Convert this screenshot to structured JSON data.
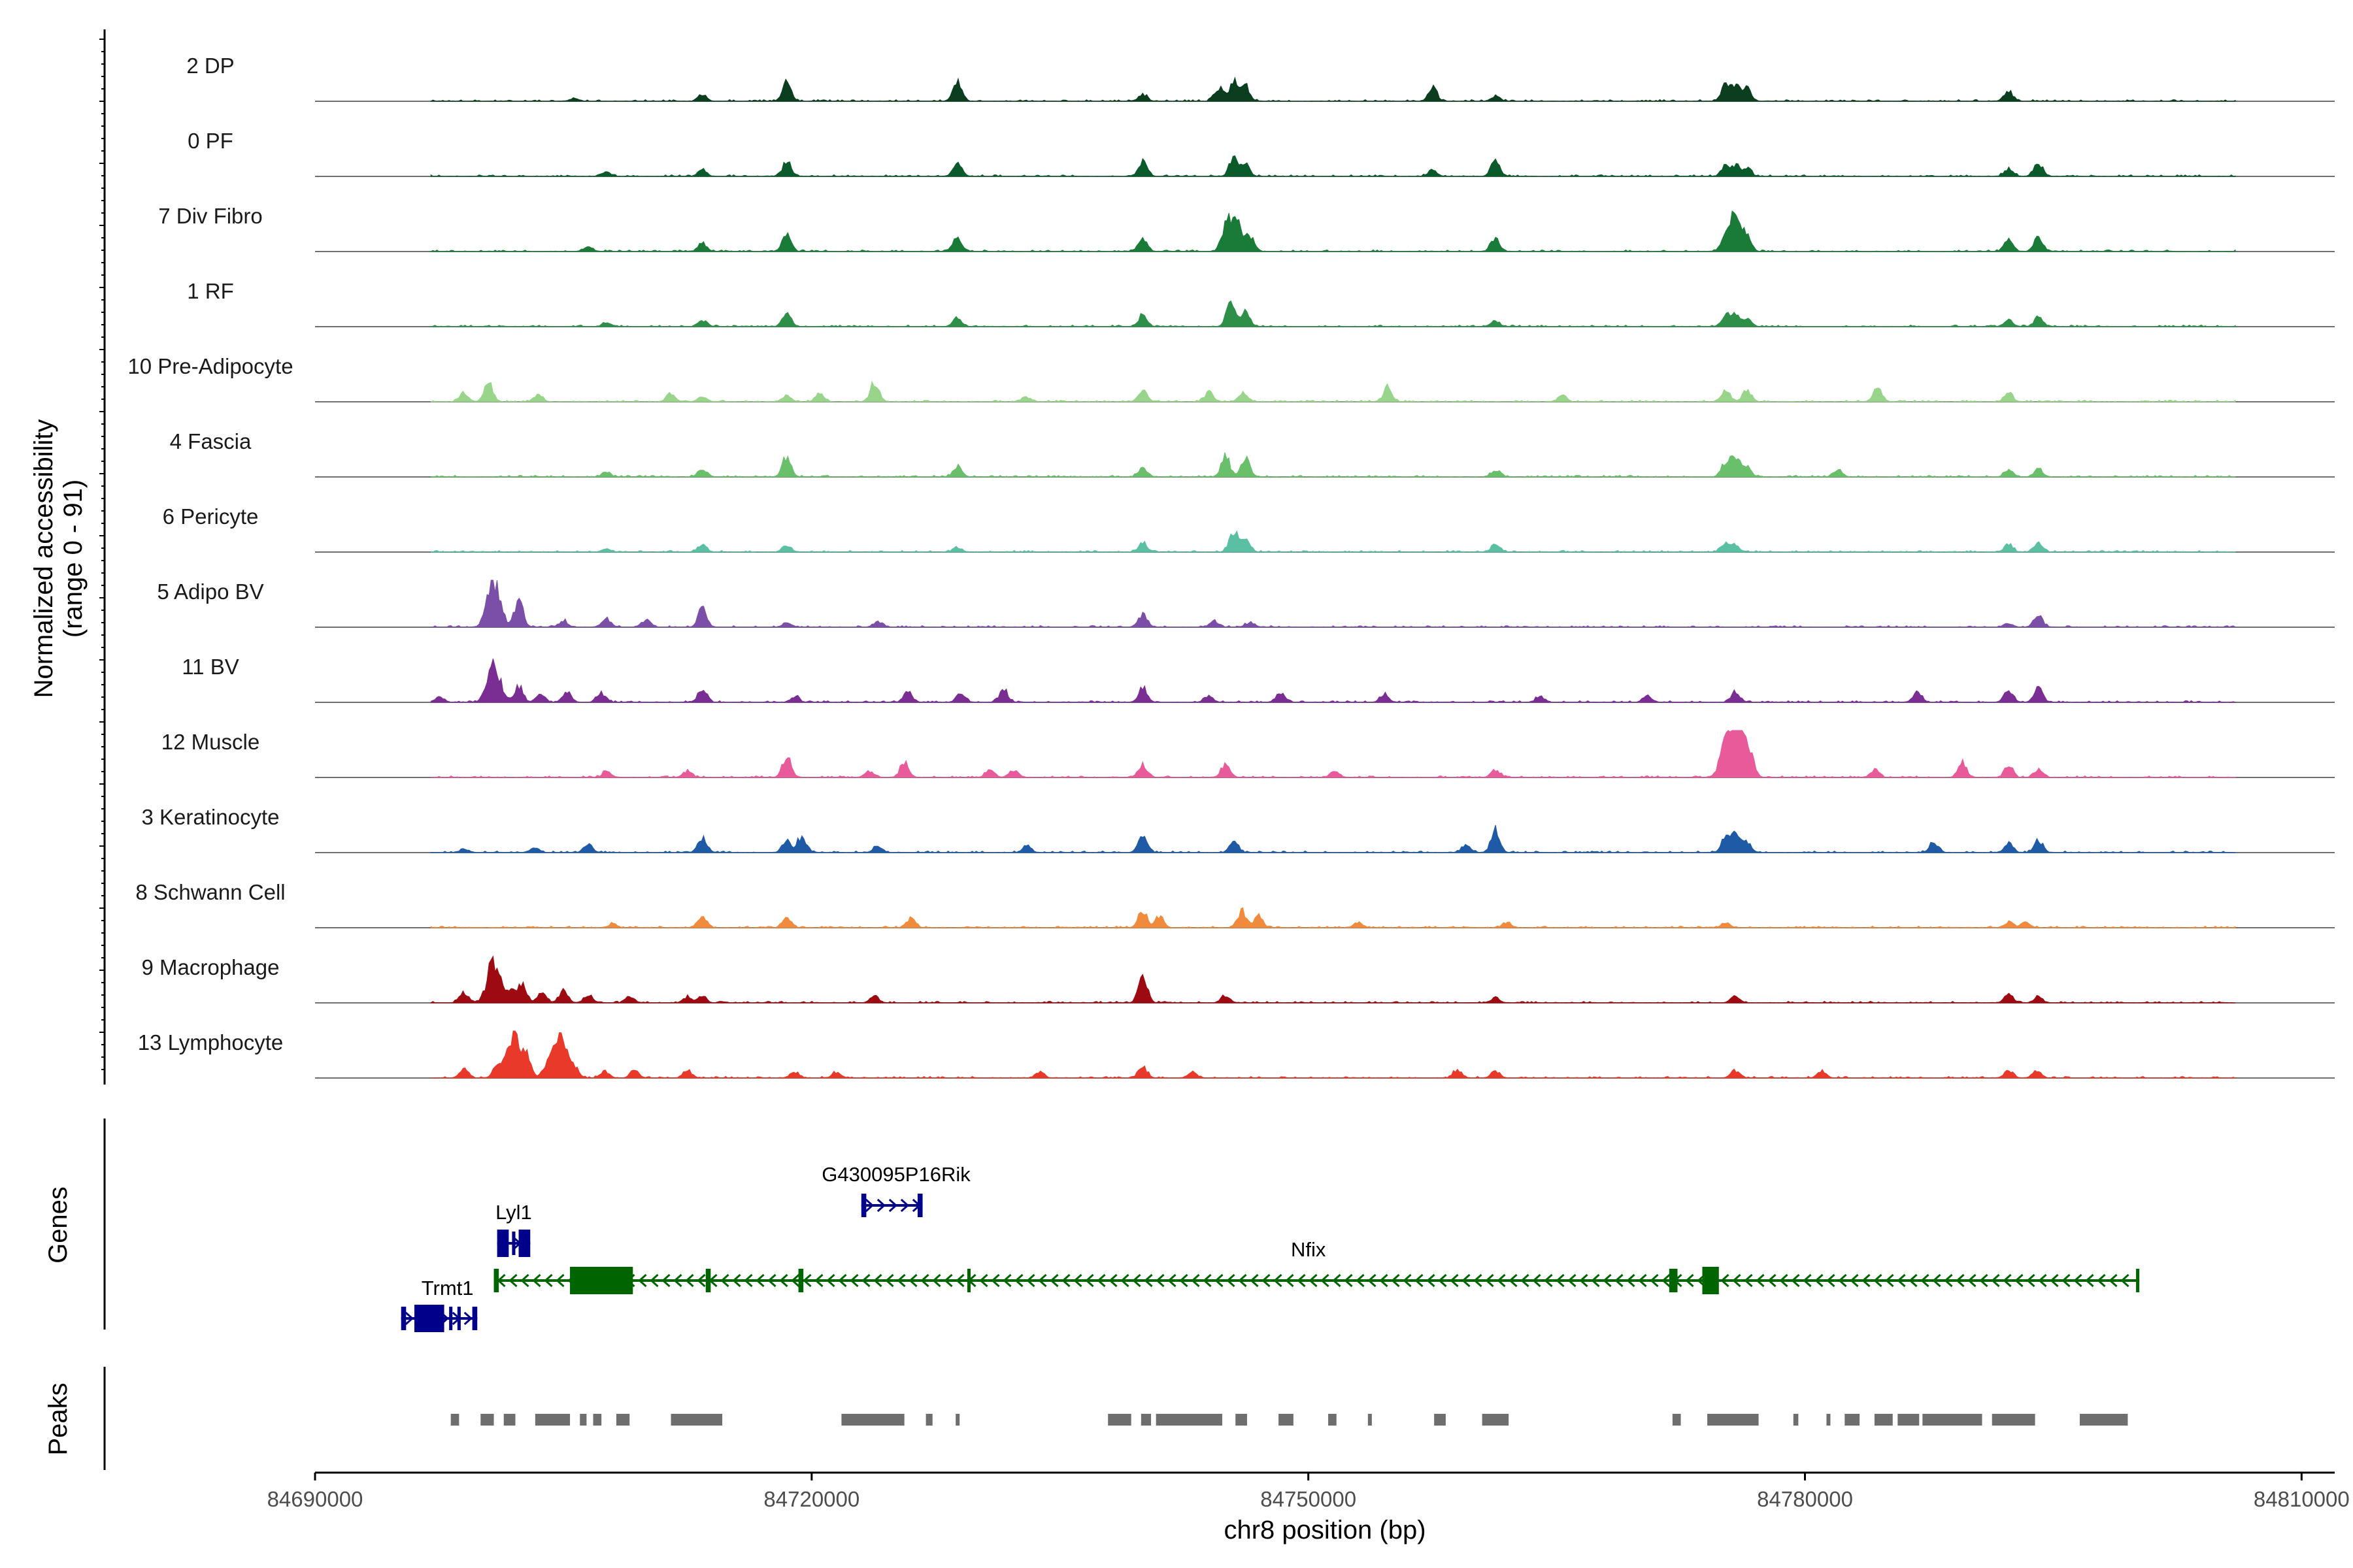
{
  "chart_data": {
    "type": "genome-browser-coverage",
    "y_axis_title_line1": "Normalized accessibility",
    "y_axis_title_line2": "(range 0 - 91)",
    "y_range": [
      0,
      91
    ],
    "x_axis_title": "chr8 position (bp)",
    "x_range": [
      84690000,
      84812000
    ],
    "x_ticks": [
      84690000,
      84720000,
      84750000,
      84780000,
      84810000
    ],
    "x_tick_labels": [
      "84690000",
      "84720000",
      "84750000",
      "84780000",
      "84810000"
    ],
    "panel_titles": {
      "genes": "Genes",
      "peaks": "Peaks"
    },
    "tracks": [
      {
        "label": "2 DP",
        "color": "#0b3d1f",
        "peaks": [
          [
            84705700,
            6
          ],
          [
            84713400,
            14
          ],
          [
            84718500,
            38
          ],
          [
            84728800,
            44
          ],
          [
            84740000,
            14
          ],
          [
            84744600,
            30
          ],
          [
            84745500,
            44
          ],
          [
            84746200,
            34
          ],
          [
            84757500,
            30
          ],
          [
            84761300,
            10
          ],
          [
            84775200,
            32
          ],
          [
            84775800,
            34
          ],
          [
            84776500,
            26
          ],
          [
            84792300,
            22
          ]
        ]
      },
      {
        "label": "0 PF",
        "color": "#0b5a2b",
        "peaks": [
          [
            84707600,
            10
          ],
          [
            84713400,
            14
          ],
          [
            84718500,
            32
          ],
          [
            84728800,
            30
          ],
          [
            84740000,
            32
          ],
          [
            84745500,
            40
          ],
          [
            84746200,
            24
          ],
          [
            84757500,
            14
          ],
          [
            84761300,
            34
          ],
          [
            84775200,
            20
          ],
          [
            84775800,
            22
          ],
          [
            84776500,
            16
          ],
          [
            84792300,
            16
          ],
          [
            84794100,
            26
          ]
        ]
      },
      {
        "label": "7 Div Fibro",
        "color": "#1a7a38",
        "peaks": [
          [
            84706500,
            10
          ],
          [
            84713400,
            18
          ],
          [
            84718500,
            38
          ],
          [
            84728800,
            34
          ],
          [
            84740000,
            26
          ],
          [
            84745000,
            40
          ],
          [
            84745600,
            68
          ],
          [
            84746500,
            28
          ],
          [
            84761300,
            30
          ],
          [
            84775200,
            26
          ],
          [
            84775800,
            72
          ],
          [
            84776500,
            22
          ],
          [
            84792300,
            24
          ],
          [
            84794100,
            30
          ]
        ]
      },
      {
        "label": "1 RF",
        "color": "#2e8f48",
        "peaks": [
          [
            84707600,
            8
          ],
          [
            84713400,
            14
          ],
          [
            84718500,
            32
          ],
          [
            84728800,
            18
          ],
          [
            84740000,
            24
          ],
          [
            84745300,
            50
          ],
          [
            84746200,
            30
          ],
          [
            84761300,
            12
          ],
          [
            84775200,
            22
          ],
          [
            84775800,
            24
          ],
          [
            84776500,
            16
          ],
          [
            84792300,
            14
          ],
          [
            84794100,
            20
          ]
        ]
      },
      {
        "label": "10 Pre-Adipocyte",
        "color": "#98d48a",
        "peaks": [
          [
            84699000,
            20
          ],
          [
            84700500,
            40
          ],
          [
            84703500,
            16
          ],
          [
            84711500,
            18
          ],
          [
            84713400,
            10
          ],
          [
            84718500,
            14
          ],
          [
            84720500,
            16
          ],
          [
            84723800,
            40
          ],
          [
            84733000,
            10
          ],
          [
            84740000,
            24
          ],
          [
            84744000,
            20
          ],
          [
            84746000,
            18
          ],
          [
            84754800,
            30
          ],
          [
            84765300,
            12
          ],
          [
            84775200,
            22
          ],
          [
            84776500,
            26
          ],
          [
            84784400,
            30
          ],
          [
            84792300,
            20
          ]
        ]
      },
      {
        "label": "4 Fascia",
        "color": "#6abf6a",
        "peaks": [
          [
            84707600,
            10
          ],
          [
            84713400,
            18
          ],
          [
            84718500,
            44
          ],
          [
            84728800,
            22
          ],
          [
            84740000,
            20
          ],
          [
            84745000,
            44
          ],
          [
            84746200,
            38
          ],
          [
            84761300,
            14
          ],
          [
            84775200,
            30
          ],
          [
            84775800,
            44
          ],
          [
            84776500,
            20
          ],
          [
            84782000,
            14
          ],
          [
            84792300,
            14
          ],
          [
            84794100,
            16
          ]
        ]
      },
      {
        "label": "6 Pericyte",
        "color": "#5abfa3",
        "peaks": [
          [
            84707600,
            6
          ],
          [
            84713400,
            14
          ],
          [
            84718500,
            14
          ],
          [
            84728800,
            10
          ],
          [
            84740000,
            20
          ],
          [
            84745500,
            44
          ],
          [
            84746200,
            28
          ],
          [
            84761300,
            14
          ],
          [
            84775200,
            18
          ],
          [
            84775800,
            14
          ],
          [
            84792300,
            16
          ],
          [
            84794100,
            20
          ]
        ]
      },
      {
        "label": "5 Adipo BV",
        "color": "#7b4fa8",
        "peaks": [
          [
            84700800,
            100
          ],
          [
            84702300,
            58
          ],
          [
            84705000,
            14
          ],
          [
            84707600,
            18
          ],
          [
            84710000,
            16
          ],
          [
            84713400,
            40
          ],
          [
            84718500,
            10
          ],
          [
            84724000,
            12
          ],
          [
            84740000,
            28
          ],
          [
            84744300,
            12
          ],
          [
            84746500,
            10
          ],
          [
            84792300,
            8
          ],
          [
            84794100,
            24
          ]
        ]
      },
      {
        "label": "11 BV",
        "color": "#7a2d92",
        "peaks": [
          [
            84697500,
            10
          ],
          [
            84700800,
            80
          ],
          [
            84702300,
            34
          ],
          [
            84703600,
            18
          ],
          [
            84705200,
            24
          ],
          [
            84707300,
            20
          ],
          [
            84713400,
            30
          ],
          [
            84719000,
            12
          ],
          [
            84725800,
            22
          ],
          [
            84729000,
            18
          ],
          [
            84731600,
            28
          ],
          [
            84740000,
            30
          ],
          [
            84744000,
            14
          ],
          [
            84748300,
            20
          ],
          [
            84754600,
            16
          ],
          [
            84764000,
            12
          ],
          [
            84770500,
            14
          ],
          [
            84775800,
            24
          ],
          [
            84786800,
            22
          ],
          [
            84792300,
            26
          ],
          [
            84794100,
            30
          ]
        ]
      },
      {
        "label": "12 Muscle",
        "color": "#e85a9a",
        "peaks": [
          [
            84707600,
            12
          ],
          [
            84712500,
            14
          ],
          [
            84718500,
            44
          ],
          [
            84723500,
            14
          ],
          [
            84725600,
            32
          ],
          [
            84730800,
            16
          ],
          [
            84732200,
            16
          ],
          [
            84740000,
            26
          ],
          [
            84745000,
            28
          ],
          [
            84751600,
            12
          ],
          [
            84761300,
            16
          ],
          [
            84775300,
            82
          ],
          [
            84776000,
            96
          ],
          [
            84776700,
            40
          ],
          [
            84784200,
            16
          ],
          [
            84789500,
            30
          ],
          [
            84792300,
            26
          ],
          [
            84794100,
            16
          ]
        ]
      },
      {
        "label": "3 Keratinocyte",
        "color": "#1f5aa6",
        "peaks": [
          [
            84699000,
            8
          ],
          [
            84703200,
            10
          ],
          [
            84706500,
            18
          ],
          [
            84713400,
            30
          ],
          [
            84718500,
            24
          ],
          [
            84719400,
            34
          ],
          [
            84724000,
            14
          ],
          [
            84733000,
            14
          ],
          [
            84740000,
            40
          ],
          [
            84745500,
            22
          ],
          [
            84759500,
            16
          ],
          [
            84761300,
            48
          ],
          [
            84775200,
            30
          ],
          [
            84775800,
            44
          ],
          [
            84776500,
            22
          ],
          [
            84787800,
            22
          ],
          [
            84792300,
            20
          ],
          [
            84794100,
            26
          ]
        ]
      },
      {
        "label": "8 Schwann Cell",
        "color": "#f08a3c",
        "peaks": [
          [
            84708000,
            8
          ],
          [
            84713400,
            24
          ],
          [
            84718500,
            18
          ],
          [
            84726000,
            20
          ],
          [
            84740000,
            34
          ],
          [
            84741000,
            24
          ],
          [
            84746000,
            36
          ],
          [
            84747000,
            24
          ],
          [
            84753000,
            10
          ],
          [
            84762000,
            10
          ],
          [
            84775200,
            10
          ],
          [
            84792300,
            12
          ],
          [
            84793300,
            12
          ]
        ]
      },
      {
        "label": "9 Macrophage",
        "color": "#9e0a12",
        "peaks": [
          [
            84699000,
            22
          ],
          [
            84700800,
            90
          ],
          [
            84701800,
            26
          ],
          [
            84702500,
            38
          ],
          [
            84703700,
            22
          ],
          [
            84705000,
            26
          ],
          [
            84706500,
            18
          ],
          [
            84709000,
            14
          ],
          [
            84712500,
            12
          ],
          [
            84713400,
            14
          ],
          [
            84723800,
            14
          ],
          [
            84740000,
            60
          ],
          [
            84745000,
            16
          ],
          [
            84761300,
            10
          ],
          [
            84775800,
            14
          ],
          [
            84792300,
            20
          ],
          [
            84794100,
            12
          ]
        ]
      },
      {
        "label": "13 Lymphocyte",
        "color": "#e8392b",
        "peaks": [
          [
            84699000,
            22
          ],
          [
            84701000,
            24
          ],
          [
            84702000,
            96
          ],
          [
            84702800,
            44
          ],
          [
            84704000,
            24
          ],
          [
            84704800,
            92
          ],
          [
            84705700,
            20
          ],
          [
            84707500,
            14
          ],
          [
            84709300,
            18
          ],
          [
            84712500,
            16
          ],
          [
            84719000,
            12
          ],
          [
            84721500,
            12
          ],
          [
            84733800,
            12
          ],
          [
            84740000,
            22
          ],
          [
            84743000,
            12
          ],
          [
            84759000,
            16
          ],
          [
            84761300,
            14
          ],
          [
            84775800,
            16
          ],
          [
            84781000,
            14
          ],
          [
            84792300,
            16
          ],
          [
            84794000,
            14
          ]
        ]
      }
    ],
    "genes": [
      {
        "name": "Trmt1",
        "strand": "+",
        "start": 84695200,
        "end": 84699800,
        "color": "#00008b",
        "exons": [
          [
            84695200,
            84695500
          ],
          [
            84696000,
            84697800
          ],
          [
            84698100,
            84698300
          ],
          [
            84698600,
            84698800
          ],
          [
            84699500,
            84699800
          ]
        ]
      },
      {
        "name": "Lyl1",
        "strand": "+",
        "start": 84701000,
        "end": 84703000,
        "color": "#00008b",
        "exons": [
          [
            84701000,
            84701700
          ],
          [
            84701900,
            84702100
          ],
          [
            84702300,
            84703000
          ]
        ]
      },
      {
        "name": "G430095P16Rik",
        "strand": "+",
        "start": 84723000,
        "end": 84726700,
        "color": "#00008b",
        "exons": [
          [
            84723000,
            84723300
          ],
          [
            84726400,
            84726700
          ]
        ]
      },
      {
        "name": "Nfix",
        "strand": "-",
        "start": 84700800,
        "end": 84800200,
        "color": "#006400",
        "exons": [
          [
            84700800,
            84701100
          ],
          [
            84705400,
            84709200
          ],
          [
            84713600,
            84713900
          ],
          [
            84719200,
            84719500
          ],
          [
            84729400,
            84729600
          ],
          [
            84771800,
            84772300
          ],
          [
            84773800,
            84774800
          ],
          [
            84800000,
            84800200
          ]
        ]
      }
    ],
    "peaks_regions": [
      [
        84698200,
        84698700
      ],
      [
        84700000,
        84700800
      ],
      [
        84701400,
        84702100
      ],
      [
        84703300,
        84705400
      ],
      [
        84706000,
        84706400
      ],
      [
        84706800,
        84707300
      ],
      [
        84708200,
        84709000
      ],
      [
        84711500,
        84714600
      ],
      [
        84721800,
        84725600
      ],
      [
        84726900,
        84727300
      ],
      [
        84728700,
        84728900
      ],
      [
        84737900,
        84739300
      ],
      [
        84739900,
        84740500
      ],
      [
        84740800,
        84744800
      ],
      [
        84745600,
        84746300
      ],
      [
        84748200,
        84749100
      ],
      [
        84751200,
        84751700
      ],
      [
        84753600,
        84753800
      ],
      [
        84757600,
        84758300
      ],
      [
        84760500,
        84762100
      ],
      [
        84772000,
        84772500
      ],
      [
        84774100,
        84777200
      ],
      [
        84779300,
        84779600
      ],
      [
        84781300,
        84781500
      ],
      [
        84782400,
        84783300
      ],
      [
        84784200,
        84785300
      ],
      [
        84785600,
        84786900
      ],
      [
        84787100,
        84790700
      ],
      [
        84791300,
        84793900
      ],
      [
        84796600,
        84799500
      ]
    ]
  }
}
